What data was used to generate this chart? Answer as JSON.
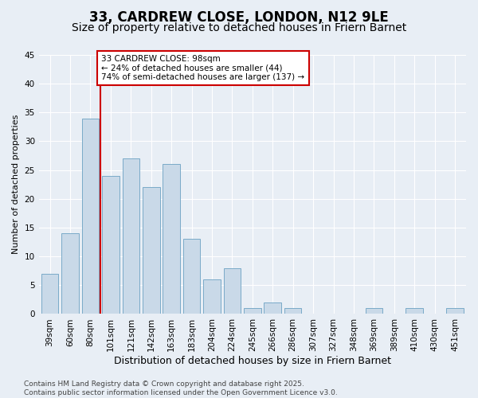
{
  "title1": "33, CARDREW CLOSE, LONDON, N12 9LE",
  "title2": "Size of property relative to detached houses in Friern Barnet",
  "xlabel": "Distribution of detached houses by size in Friern Barnet",
  "ylabel": "Number of detached properties",
  "categories": [
    "39sqm",
    "60sqm",
    "80sqm",
    "101sqm",
    "121sqm",
    "142sqm",
    "163sqm",
    "183sqm",
    "204sqm",
    "224sqm",
    "245sqm",
    "266sqm",
    "286sqm",
    "307sqm",
    "327sqm",
    "348sqm",
    "369sqm",
    "389sqm",
    "410sqm",
    "430sqm",
    "451sqm"
  ],
  "values": [
    7,
    14,
    34,
    24,
    27,
    22,
    26,
    13,
    6,
    8,
    1,
    2,
    1,
    0,
    0,
    0,
    1,
    0,
    1,
    0,
    1
  ],
  "bar_color": "#c9d9e8",
  "bar_edge_color": "#7aaac8",
  "vline_color": "#cc0000",
  "annotation_text": "33 CARDREW CLOSE: 98sqm\n← 24% of detached houses are smaller (44)\n74% of semi-detached houses are larger (137) →",
  "annotation_box_color": "#ffffff",
  "annotation_box_edge": "#cc0000",
  "ylim": [
    0,
    45
  ],
  "yticks": [
    0,
    5,
    10,
    15,
    20,
    25,
    30,
    35,
    40,
    45
  ],
  "bg_color": "#e8eef5",
  "plot_bg_color": "#e8eef5",
  "footer": "Contains HM Land Registry data © Crown copyright and database right 2025.\nContains public sector information licensed under the Open Government Licence v3.0.",
  "title1_fontsize": 12,
  "title2_fontsize": 10,
  "xlabel_fontsize": 9,
  "ylabel_fontsize": 8,
  "tick_fontsize": 7.5,
  "footer_fontsize": 6.5,
  "annotation_fontsize": 7.5
}
